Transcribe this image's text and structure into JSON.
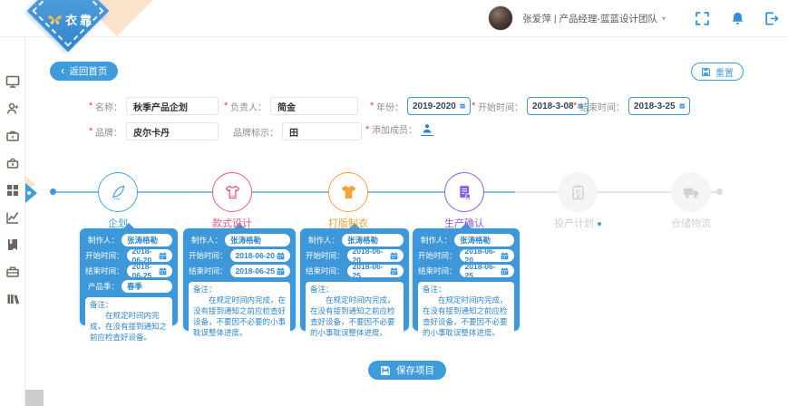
{
  "app": {
    "logo_text": "衣靠"
  },
  "header": {
    "user_label": "张爱萍 | 产品经理-蓝蓝设计团队",
    "caret": "▾"
  },
  "actions": {
    "back_chevron": "‹",
    "back": "返回首页",
    "reset": "重置",
    "save": "保存项目"
  },
  "sidebar": {
    "items": [
      {
        "id": "dashboard",
        "icon": "monitor-icon"
      },
      {
        "id": "add-user",
        "icon": "add-user-icon"
      },
      {
        "id": "projects",
        "icon": "briefcase-icon"
      },
      {
        "id": "products",
        "icon": "handbag-icon"
      },
      {
        "id": "apps",
        "icon": "apps-grid-icon"
      },
      {
        "id": "reports",
        "icon": "line-chart-icon"
      },
      {
        "id": "bookmarks",
        "icon": "bookmark-icon"
      },
      {
        "id": "toolbox",
        "icon": "toolbox-icon"
      },
      {
        "id": "library",
        "icon": "library-icon"
      }
    ]
  },
  "project_form": {
    "rows": [
      {
        "fields": [
          {
            "label": "名称：",
            "required": true,
            "type": "text",
            "value": "秋季产品企划"
          },
          {
            "label": "负责人：",
            "required": true,
            "type": "text",
            "value": "简金"
          },
          {
            "label": "年份：",
            "required": true,
            "type": "date",
            "value": "2019-2020"
          },
          {
            "label": "开始时间：",
            "required": true,
            "type": "date",
            "value": "2018-3-08"
          },
          {
            "label": "结束时间：",
            "required": true,
            "type": "date",
            "value": "2018-3-25"
          }
        ]
      },
      {
        "fields": [
          {
            "label": "品牌：",
            "required": true,
            "type": "text",
            "value": "皮尔卡丹"
          },
          {
            "label": "品牌标示：",
            "required": false,
            "type": "text",
            "value": "田"
          },
          {
            "label": "添加成员：",
            "required": true,
            "type": "member",
            "value": ""
          }
        ]
      }
    ]
  },
  "timeline": {
    "steps": [
      {
        "label": "企划",
        "icon": "feather-icon",
        "color": "#4aa3df",
        "state": "active",
        "dot": false
      },
      {
        "label": "款式设计",
        "icon": "tshirt-outline-icon",
        "color": "#e45a74",
        "state": "active",
        "dot": false
      },
      {
        "label": "打版制衣",
        "icon": "tshirt-filled-icon",
        "color": "#f2a33c",
        "state": "active",
        "dot": false
      },
      {
        "label": "生产确认",
        "icon": "certificate-icon",
        "color": "#8a5ce8",
        "state": "active",
        "dot": false
      },
      {
        "label": "投产计划",
        "icon": "clipboard-check-icon",
        "color": "#c9c9c9",
        "state": "inactive",
        "dot": true
      },
      {
        "label": "仓储物流",
        "icon": "truck-icon",
        "color": "#c9c9c9",
        "state": "inactive",
        "dot": false
      }
    ]
  },
  "stage_cards": [
    {
      "fields": [
        {
          "label": "制作人：",
          "type": "text",
          "value": "张涛格勒"
        },
        {
          "label": "开始时间：",
          "type": "date",
          "value": "2018-06-20"
        },
        {
          "label": "结束时间：",
          "type": "date",
          "value": "2018-06-25"
        },
        {
          "label": "产品季：",
          "type": "text",
          "value": "春季"
        }
      ],
      "note_label": "备注：",
      "note": "在规定时间内完成，在没有接到通知之前应检查好设备。"
    },
    {
      "fields": [
        {
          "label": "制作人：",
          "type": "text",
          "value": "张涛格勒"
        },
        {
          "label": "开始时间：",
          "type": "date",
          "value": "2018-06-20"
        },
        {
          "label": "结束时间：",
          "type": "date",
          "value": "2018-06-25"
        }
      ],
      "note_label": "备注：",
      "note": "在规定时间内完成，在没有接到通知之前应检查好设备，不要因不必要的小事耽误整体进度。"
    },
    {
      "fields": [
        {
          "label": "制作人：",
          "type": "text",
          "value": "张涛格勒"
        },
        {
          "label": "开始时间：",
          "type": "date",
          "value": "2018-06-20"
        },
        {
          "label": "结束时间：",
          "type": "date",
          "value": "2018-06-25"
        }
      ],
      "note_label": "备注：",
      "note": "在规定时间内完成，在没有接到通知之前应检查好设备，不要因不必要的小事耽误整体进度。"
    },
    {
      "fields": [
        {
          "label": "制作人：",
          "type": "text",
          "value": "张涛格勒"
        },
        {
          "label": "开始时间：",
          "type": "date",
          "value": "2018-06-20"
        },
        {
          "label": "结束时间：",
          "type": "date",
          "value": "2018-06-25"
        }
      ],
      "note_label": "备注：",
      "note": "在规定时间内完成，在没有接到通知之前应检查好设备，不要因不必要的小事耽误整体进度。"
    }
  ],
  "colors": {
    "accent": "#3e9bdc",
    "card_background": "#3e97d9",
    "required_asterisk": "#e04343",
    "timeline_active_line": "#85bfeb",
    "timeline_inactive_line": "#e3e3e3",
    "step_planning": "#4aa3df",
    "step_style_design": "#e45a74",
    "step_pattern_making": "#f2a33c",
    "step_production_confirm": "#8a5ce8",
    "inactive_gray": "#c9c9c9"
  }
}
